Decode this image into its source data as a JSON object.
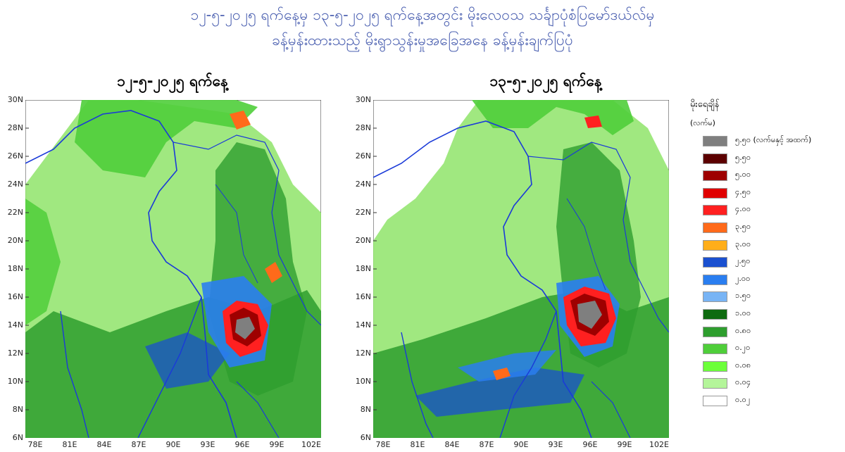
{
  "header": {
    "title_line1": "၁၂-၅-၂၀၂၅ ရက်နေ့မှ ၁၃-၅-၂၀၂၅ ရက်နေ့အတွင်း မိုးလေဝသ သင်္ချာပုံစံပြမော်ဒယ်လ်မှ",
    "title_line2": "ခန့်မှန်းထားသည့် မိုးရွာသွန်းမှုအခြေအနေ ခန့်မှန်းချက်ပြပုံ"
  },
  "maps": [
    {
      "title": "၁၂-၅-၂၀၂၅ ရက်နေ့"
    },
    {
      "title": "၁၃-၅-၂၀၂၅ ရက်နေ့"
    }
  ],
  "axes": {
    "lat_labels": [
      "30N",
      "28N",
      "26N",
      "24N",
      "22N",
      "20N",
      "18N",
      "16N",
      "14N",
      "12N",
      "10N",
      "8N",
      "6N"
    ],
    "lon_labels": [
      "78E",
      "81E",
      "84E",
      "87E",
      "90E",
      "93E",
      "96E",
      "99E",
      "102E"
    ]
  },
  "legend": {
    "title": "မိုးရေချိန်",
    "unit": "(လက်မ)",
    "items": [
      {
        "label": "၅.၅၀ (လက်မနှင့် အထက်)",
        "color": "#7f7f7f"
      },
      {
        "label": "၅.၅၀",
        "color": "#5c0000"
      },
      {
        "label": "၅.၀၀",
        "color": "#9e0000"
      },
      {
        "label": "၄.၅၀",
        "color": "#e00000"
      },
      {
        "label": "၄.၀၀",
        "color": "#ff2020"
      },
      {
        "label": "၃.၅၀",
        "color": "#ff6a1a"
      },
      {
        "label": "၃.၀၀",
        "color": "#ffae1a"
      },
      {
        "label": "၂.၅၀",
        "color": "#1a50d0"
      },
      {
        "label": "၂.၀၀",
        "color": "#2a7ef0"
      },
      {
        "label": "၁.၅၀",
        "color": "#78b4f5"
      },
      {
        "label": "၁.၀၀",
        "color": "#0e6b10"
      },
      {
        "label": "၀.၈၀",
        "color": "#2e9e2e"
      },
      {
        "label": "၀.၂၀",
        "color": "#4fce3a"
      },
      {
        "label": "၀.၀၈",
        "color": "#6cff3a"
      },
      {
        "label": "၀.၀၄",
        "color": "#b4f59a"
      },
      {
        "label": "၀.၀၂",
        "color": "#ffffff"
      }
    ]
  }
}
